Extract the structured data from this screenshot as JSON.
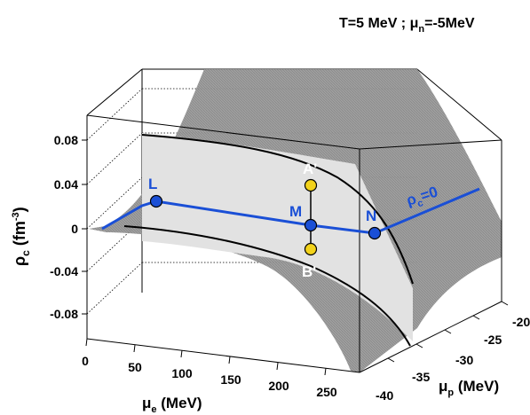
{
  "chart_data": {
    "type": "surface3d",
    "title_main": "T=5 MeV ; μ",
    "title_sub": "n",
    "title_end": "=-5MeV",
    "z_axis": {
      "label_main": "ρ",
      "label_sub": "c",
      "label_unit": " (fm",
      "label_sup": "-3",
      "label_close": ")",
      "ticks": [
        "0.08",
        "0.04",
        "0",
        "-0.04",
        "-0.08"
      ],
      "values": [
        0.08,
        0.04,
        0,
        -0.04,
        -0.08
      ]
    },
    "x_axis": {
      "label_main": "μ",
      "label_sub": "e",
      "label_unit": " (MeV)",
      "ticks": [
        "0",
        "50",
        "100",
        "150",
        "200",
        "250"
      ]
    },
    "y_axis": {
      "label_main": "μ",
      "label_sub": "p",
      "label_unit": " (MeV)",
      "ticks": [
        "-20",
        "-25",
        "-30",
        "-35",
        "-40"
      ]
    },
    "points": [
      {
        "name": "L",
        "color": "#1a4fd6"
      },
      {
        "name": "M",
        "color": "#1a4fd6"
      },
      {
        "name": "N",
        "color": "#1a4fd6"
      },
      {
        "name": "A'",
        "color": "#f2d21b"
      },
      {
        "name": "B'",
        "color": "#f2d21b"
      }
    ],
    "contour_label_main": "ρ",
    "contour_label_sub": "c",
    "contour_label_end": "=0",
    "colors": {
      "line": "#1a4fd6",
      "surface": "#8c8c8c",
      "plane": "#e0e0e0",
      "marker_yellow": "#f2d21b"
    }
  }
}
